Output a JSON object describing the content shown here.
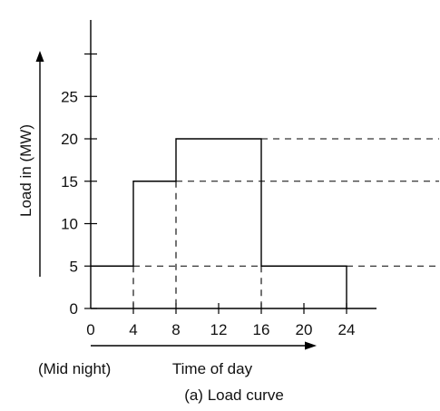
{
  "chart_data": {
    "type": "line",
    "step": true,
    "caption": "(a) Load curve",
    "xlabel": "Time of day",
    "x_note": "(Mid night)",
    "ylabel": "Load in (MW)",
    "x_ticks": [
      0,
      4,
      8,
      12,
      16,
      20,
      24
    ],
    "y_ticks": [
      0,
      5,
      10,
      15,
      20,
      25
    ],
    "xlim": [
      0,
      27
    ],
    "ylim": [
      0,
      34
    ],
    "series": [
      {
        "segments": [
          {
            "from": 0,
            "to": 4,
            "load": 5
          },
          {
            "from": 4,
            "to": 8,
            "load": 15
          },
          {
            "from": 8,
            "to": 16,
            "load": 20
          },
          {
            "from": 16,
            "to": 24,
            "load": 5
          }
        ]
      }
    ],
    "reference_lines": [
      5,
      15,
      20
    ],
    "grid": false,
    "legend": "none"
  }
}
